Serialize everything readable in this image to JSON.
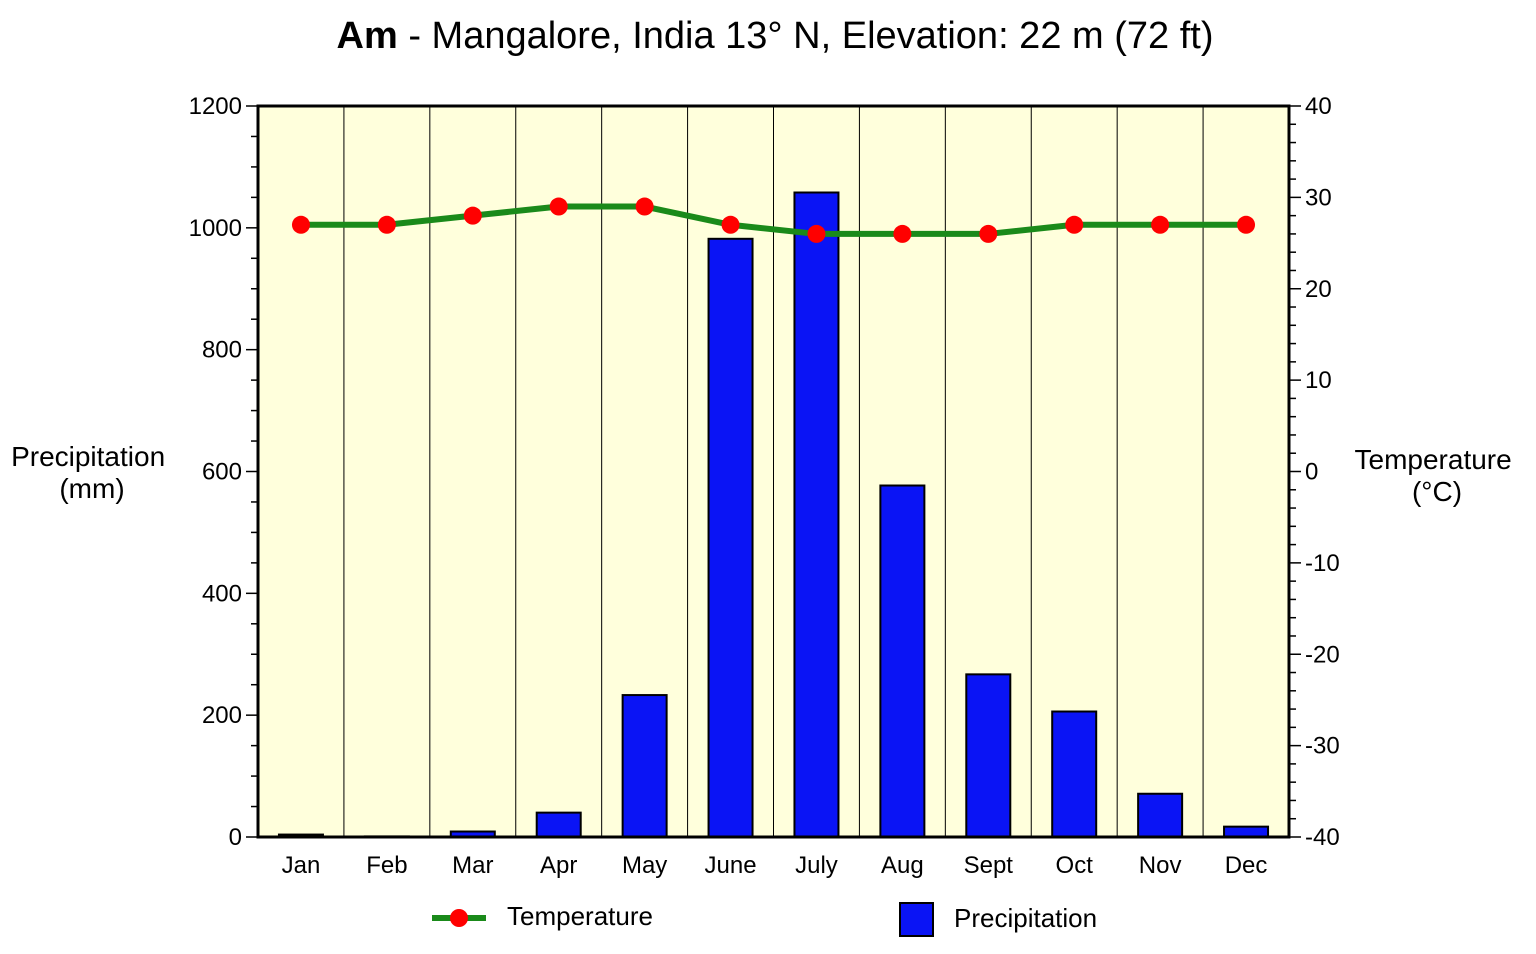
{
  "chart_data": {
    "type": "bar",
    "title_bold": "Am",
    "title_rest": " - Mangalore, India 13° N, Elevation: 22 m (72 ft)",
    "categories": [
      "Jan",
      "Feb",
      "Mar",
      "Apr",
      "May",
      "June",
      "July",
      "Aug",
      "Sept",
      "Oct",
      "Nov",
      "Dec"
    ],
    "ylabel_left": [
      "Precipitation",
      "(mm)"
    ],
    "ylabel_right": [
      "Temperature",
      "(°C)"
    ],
    "ylim_left": [
      0,
      1200
    ],
    "ylim_right": [
      -40,
      40
    ],
    "yticks_left": [
      "0",
      "200",
      "400",
      "600",
      "800",
      "1000",
      "1200"
    ],
    "yticks_right": [
      "-40",
      "-30",
      "-20",
      "-10",
      "0",
      "10",
      "20",
      "30",
      "40"
    ],
    "series": [
      {
        "name": "Precipitation",
        "kind": "bar",
        "axis": "left",
        "color": "#0a14f5",
        "values": [
          4,
          1,
          9,
          40,
          233,
          982,
          1058,
          577,
          267,
          206,
          71,
          17
        ]
      },
      {
        "name": "Temperature",
        "kind": "line",
        "axis": "right",
        "color": "#1a8a1a",
        "marker_color": "#ff0000",
        "values": [
          27,
          27,
          28,
          29,
          29,
          27,
          26,
          26,
          26,
          27,
          27,
          27
        ]
      }
    ],
    "legend": {
      "placement": "bottom",
      "items": [
        "Temperature",
        "Precipitation"
      ]
    },
    "plot_background": "#ffffdc",
    "grid": "vertical"
  }
}
